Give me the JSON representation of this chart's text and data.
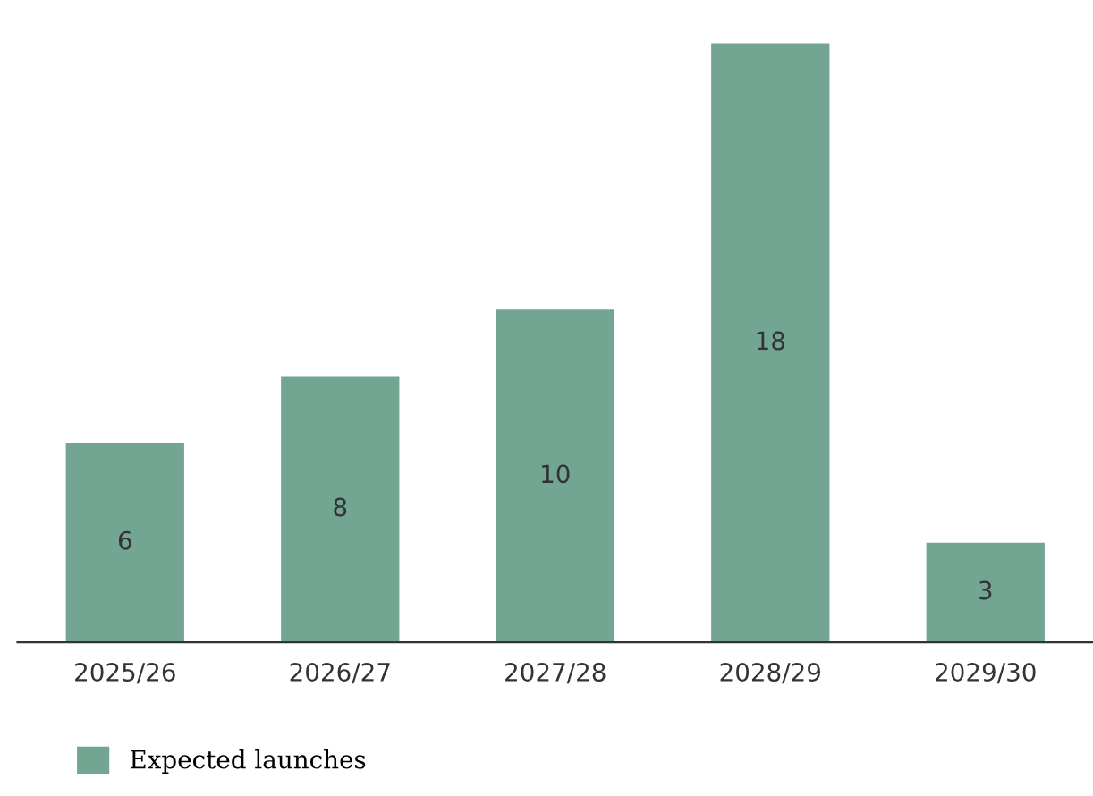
{
  "chart_data": {
    "type": "bar",
    "categories": [
      "2025/26",
      "2026/27",
      "2027/28",
      "2028/29",
      "2029/30"
    ],
    "series": [
      {
        "name": "Expected launches",
        "color": "#72a592",
        "values": [
          6,
          8,
          10,
          18,
          3
        ]
      }
    ],
    "data_labels": true,
    "grid": false,
    "legend": "bottom left"
  }
}
